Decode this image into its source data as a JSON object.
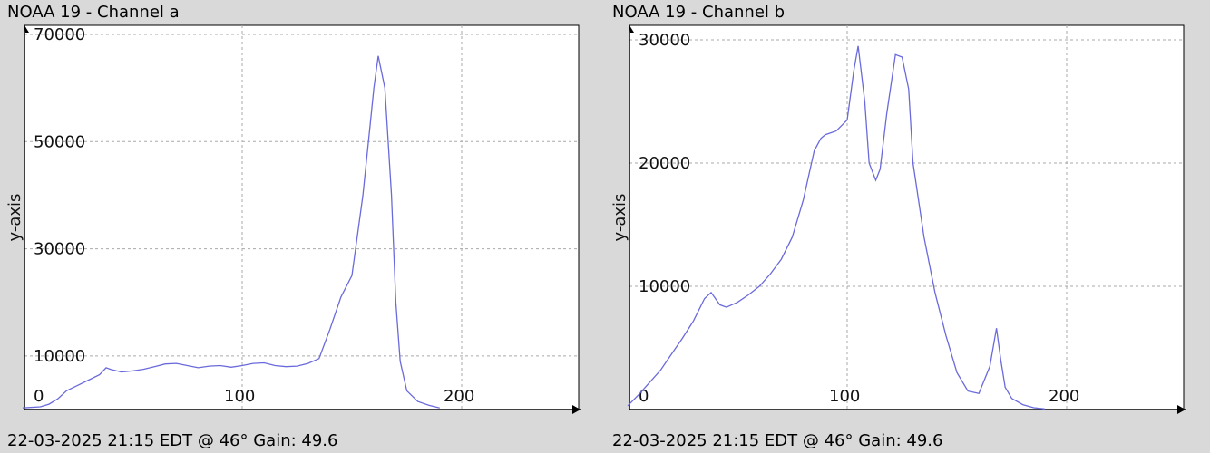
{
  "charts": [
    {
      "title": "NOAA 19 - Channel a",
      "status": "22-03-2025 21:15 EDT @ 46° Gain: 49.6",
      "chart_data": {
        "type": "line",
        "title": "NOAA 19 - Channel a",
        "xlabel": "",
        "ylabel": "y-axis",
        "xlim": [
          0,
          255
        ],
        "ylim": [
          0,
          70000
        ],
        "x_ticks": [
          0,
          100,
          200
        ],
        "y_ticks": [
          10000,
          30000,
          50000,
          70000
        ],
        "grid": true,
        "color": "#6a6adc",
        "series": [
          {
            "x": [
              0,
              8,
              12,
              16,
              20,
              25,
              30,
              35,
              38,
              40,
              45,
              50,
              55,
              60,
              65,
              70,
              75,
              80,
              85,
              90,
              95,
              100,
              105,
              110,
              115,
              120,
              125,
              130,
              135,
              140,
              145,
              150,
              155,
              158,
              160,
              162,
              165,
              168,
              170,
              172,
              175,
              180,
              185,
              190
            ],
            "y": [
              300,
              500,
              1000,
              2000,
              3500,
              4500,
              5500,
              6500,
              7800,
              7500,
              7000,
              7200,
              7500,
              8000,
              8500,
              8600,
              8200,
              7800,
              8100,
              8200,
              7900,
              8200,
              8600,
              8700,
              8200,
              8000,
              8100,
              8600,
              9500,
              15000,
              21000,
              25000,
              40000,
              52000,
              60000,
              66000,
              60000,
              40000,
              20000,
              9000,
              3500,
              1500,
              800,
              300
            ]
          }
        ]
      }
    },
    {
      "title": "NOAA 19 - Channel b",
      "status": "22-03-2025 21:15 EDT @ 46° Gain: 49.6",
      "chart_data": {
        "type": "line",
        "title": "NOAA 19 - Channel b",
        "xlabel": "",
        "ylabel": "y-axis",
        "xlim": [
          0,
          255
        ],
        "ylim": [
          0,
          30000
        ],
        "x_ticks": [
          0,
          100,
          200
        ],
        "y_ticks": [
          10000,
          20000,
          30000
        ],
        "grid": true,
        "color": "#6a6adc",
        "series": [
          {
            "x": [
              0,
              5,
              10,
              15,
              20,
              25,
              30,
              35,
              38,
              40,
              42,
              45,
              50,
              55,
              60,
              65,
              70,
              75,
              80,
              85,
              88,
              90,
              95,
              100,
              103,
              105,
              108,
              110,
              113,
              115,
              118,
              122,
              125,
              128,
              130,
              135,
              140,
              145,
              150,
              155,
              160,
              165,
              168,
              170,
              172,
              175,
              180,
              185,
              190
            ],
            "y": [
              300,
              1200,
              2200,
              3200,
              4500,
              5800,
              7200,
              9000,
              9500,
              9000,
              8500,
              8300,
              8700,
              9300,
              10000,
              11000,
              12200,
              14000,
              17000,
              21000,
              22000,
              22300,
              22600,
              23500,
              27500,
              29500,
              25000,
              20000,
              18600,
              19500,
              24000,
              28800,
              28600,
              26000,
              20000,
              14000,
              9500,
              6000,
              3000,
              1500,
              1300,
              3500,
              6600,
              4000,
              1800,
              900,
              400,
              150,
              50
            ]
          }
        ]
      }
    }
  ]
}
